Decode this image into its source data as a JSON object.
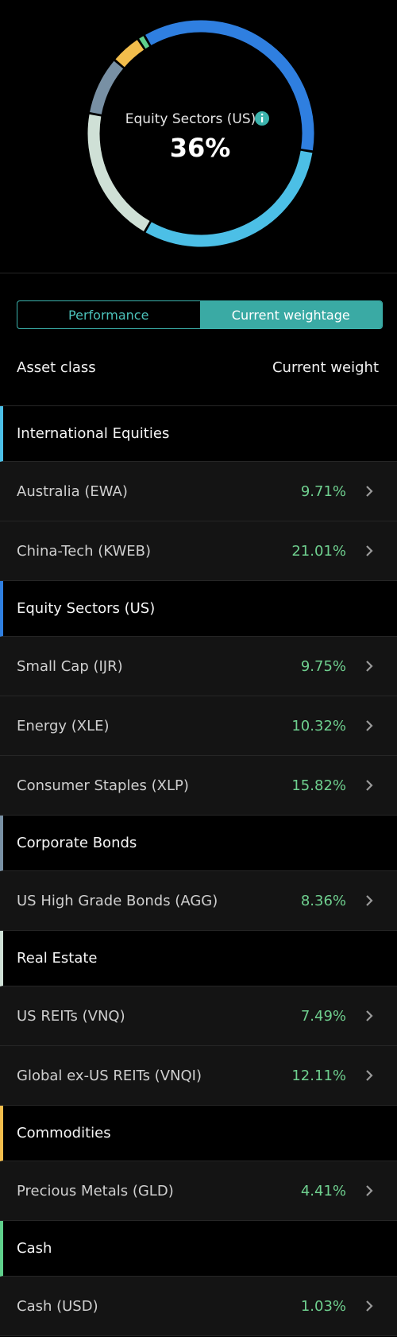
{
  "donut": {
    "center_label": "Equity Sectors (US)",
    "center_value": "36%",
    "values": [
      35.89,
      30.72,
      19.6,
      8.36,
      4.41,
      1.03
    ],
    "colors": [
      "#2f7fe0",
      "#4cbfe6",
      "#cfe0d6",
      "#7890a4",
      "#f2bd4c",
      "#5fd08c"
    ]
  },
  "tabs": [
    {
      "label": "Performance",
      "active": false
    },
    {
      "label": "Current weightage",
      "active": true
    }
  ],
  "table": {
    "headers": [
      "Asset class",
      "Current weight"
    ],
    "groups": [
      {
        "name": "International Equities",
        "color": "#4cbfe6",
        "items": [
          {
            "name": "Australia (EWA)",
            "weight": "9.71%"
          },
          {
            "name": "China-Tech (KWEB)",
            "weight": "21.01%"
          }
        ]
      },
      {
        "name": "Equity Sectors (US)",
        "color": "#2f7fe0",
        "items": [
          {
            "name": "Small Cap (IJR)",
            "weight": "9.75%"
          },
          {
            "name": "Energy (XLE)",
            "weight": "10.32%"
          },
          {
            "name": "Consumer Staples (XLP)",
            "weight": "15.82%"
          }
        ]
      },
      {
        "name": "Corporate Bonds",
        "color": "#7890a4",
        "items": [
          {
            "name": "US High Grade Bonds (AGG)",
            "weight": "8.36%"
          }
        ]
      },
      {
        "name": "Real Estate",
        "color": "#cfe0d6",
        "items": [
          {
            "name": "US REITs (VNQ)",
            "weight": "7.49%"
          },
          {
            "name": "Global ex-US REITs (VNQI)",
            "weight": "12.11%"
          }
        ]
      },
      {
        "name": "Commodities",
        "color": "#f2bd4c",
        "items": [
          {
            "name": "Precious Metals (GLD)",
            "weight": "4.41%"
          }
        ]
      },
      {
        "name": "Cash",
        "color": "#5fd08c",
        "items": [
          {
            "name": "Cash (USD)",
            "weight": "1.03%"
          }
        ]
      }
    ]
  }
}
